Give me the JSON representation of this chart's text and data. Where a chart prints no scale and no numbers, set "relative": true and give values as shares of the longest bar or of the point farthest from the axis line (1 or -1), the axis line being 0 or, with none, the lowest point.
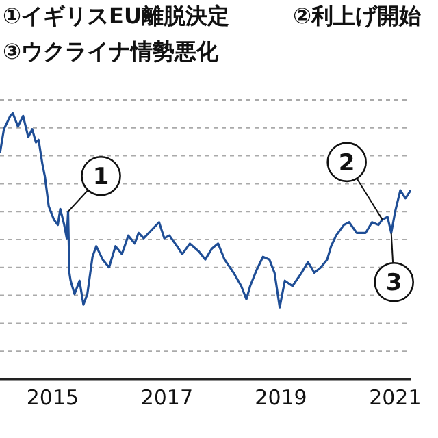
{
  "chart_data": {
    "type": "line",
    "relative": true,
    "grid": "y",
    "legend": false,
    "marker": "none",
    "line_style": "solid",
    "annotations": [
      "①イギリスEU離脱決定",
      "②利上げ開始",
      "③ウクライナ情勢悪化",
      {
        "text": "1",
        "x": "2015-04-10",
        "y": 0.63
      },
      {
        "text": "2",
        "x": "2020-10-11",
        "y": 0.6
      },
      {
        "text": "3",
        "x": "2020-12-07",
        "y": 0.55
      }
    ],
    "xlim": [
      "2014-01-29",
      "2021-04-10"
    ],
    "xticks": [
      "2015",
      "2017",
      "2019",
      "2021"
    ],
    "x": [
      "2014-01-29",
      "2014-02-23",
      "2014-04-05",
      "2014-04-21",
      "2014-05-24",
      "2014-06-26",
      "2014-07-29",
      "2014-08-23",
      "2014-09-16",
      "2014-10-03",
      "2014-10-27",
      "2014-11-13",
      "2014-12-07",
      "2015-01-09",
      "2015-02-03",
      "2015-02-19",
      "2015-03-16",
      "2015-04-01",
      "2015-04-10",
      "2015-04-18",
      "2015-04-26",
      "2015-05-21",
      "2015-06-22",
      "2015-07-17",
      "2015-08-11",
      "2015-09-13",
      "2015-10-07",
      "2015-11-17",
      "2015-12-28",
      "2016-02-07",
      "2016-03-19",
      "2016-04-29",
      "2016-06-09",
      "2016-07-04",
      "2016-08-06",
      "2016-09-24",
      "2016-11-12",
      "2016-12-15",
      "2017-01-17",
      "2017-03-07",
      "2017-04-09",
      "2017-05-28",
      "2017-07-25",
      "2017-09-04",
      "2017-10-15",
      "2017-11-25",
      "2018-01-05",
      "2018-03-04",
      "2018-04-22",
      "2018-05-25",
      "2018-06-18",
      "2018-07-29",
      "2018-09-08",
      "2018-10-19",
      "2018-11-21",
      "2018-12-24",
      "2019-01-26",
      "2019-03-16",
      "2019-05-13",
      "2019-06-23",
      "2019-08-03",
      "2019-09-13",
      "2019-10-24",
      "2019-11-18",
      "2019-12-20",
      "2020-02-08",
      "2020-03-12",
      "2020-04-30",
      "2020-06-26",
      "2020-08-06",
      "2020-09-16",
      "2020-10-11",
      "2020-11-13",
      "2020-12-07",
      "2021-01-01",
      "2021-02-03",
      "2021-03-08",
      "2021-04-10"
    ],
    "series": [
      {
        "color": "#1f4e96",
        "values": [
          0.85,
          0.94,
          0.99,
          1,
          0.95,
          0.99,
          0.91,
          0.94,
          0.89,
          0.9,
          0.81,
          0.76,
          0.65,
          0.6,
          0.58,
          0.64,
          0.58,
          0.53,
          0.63,
          0.4,
          0.37,
          0.32,
          0.37,
          0.28,
          0.32,
          0.46,
          0.5,
          0.45,
          0.42,
          0.5,
          0.47,
          0.54,
          0.51,
          0.55,
          0.53,
          0.56,
          0.59,
          0.53,
          0.54,
          0.5,
          0.47,
          0.51,
          0.48,
          0.45,
          0.49,
          0.51,
          0.45,
          0.4,
          0.35,
          0.3,
          0.35,
          0.41,
          0.46,
          0.45,
          0.4,
          0.27,
          0.37,
          0.35,
          0.4,
          0.44,
          0.4,
          0.42,
          0.45,
          0.5,
          0.54,
          0.58,
          0.59,
          0.55,
          0.55,
          0.59,
          0.58,
          0.6,
          0.61,
          0.55,
          0.63,
          0.71,
          0.68,
          0.71
        ]
      }
    ]
  }
}
